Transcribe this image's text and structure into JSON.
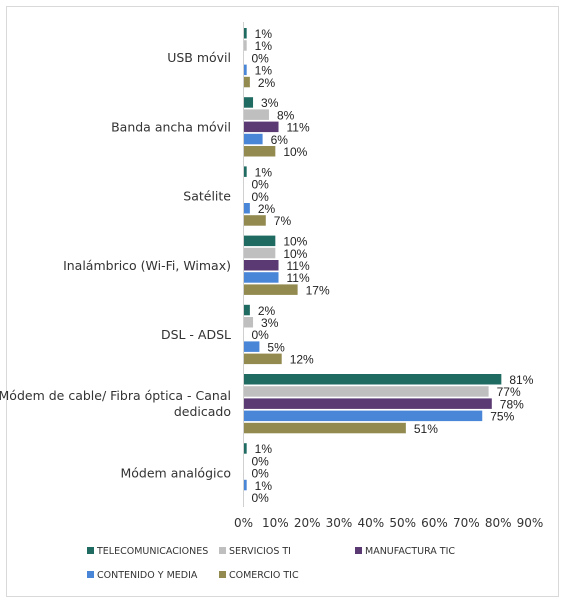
{
  "chart_data": {
    "type": "bar",
    "orientation": "horizontal",
    "categories": [
      "USB móvil",
      "Banda ancha móvil",
      "Satélite",
      "Inalámbrico (Wi-Fi, Wimax)",
      "DSL - ADSL",
      "Módem de cable/ Fibra óptica - Canal dedicado",
      "Módem analógico"
    ],
    "category_label_lines": [
      [
        "USB móvil"
      ],
      [
        "Banda ancha móvil"
      ],
      [
        "Satélite"
      ],
      [
        "Inalámbrico (Wi-Fi, Wimax)"
      ],
      [
        "DSL - ADSL"
      ],
      [
        "Módem de cable/ Fibra óptica - Canal",
        "dedicado"
      ],
      [
        "Módem analógico"
      ]
    ],
    "series": [
      {
        "name": "TELECOMUNICACIONES",
        "color": "#1f6b62",
        "values": [
          1,
          3,
          1,
          10,
          2,
          81,
          1
        ]
      },
      {
        "name": "SERVICIOS TI",
        "color": "#bfbfbf",
        "values": [
          1,
          8,
          0,
          10,
          3,
          77,
          0
        ]
      },
      {
        "name": "MANUFACTURA TIC",
        "color": "#5b3a73",
        "values": [
          0,
          11,
          0,
          11,
          0,
          78,
          0
        ]
      },
      {
        "name": "CONTENIDO Y MEDIA",
        "color": "#4a86d8",
        "values": [
          1,
          6,
          2,
          11,
          5,
          75,
          1
        ]
      },
      {
        "name": "COMERCIO TIC",
        "color": "#938a4f",
        "values": [
          2,
          10,
          7,
          17,
          12,
          51,
          0
        ]
      }
    ],
    "data_labels": [
      [
        "1%",
        "1%",
        "0%",
        "1%",
        "2%"
      ],
      [
        "3%",
        "8%",
        "11%",
        "6%",
        "10%"
      ],
      [
        "1%",
        "0%",
        "0%",
        "2%",
        "7%"
      ],
      [
        "10%",
        "10%",
        "11%",
        "11%",
        "17%"
      ],
      [
        "2%",
        "3%",
        "0%",
        "5%",
        "12%"
      ],
      [
        "81%",
        "77%",
        "78%",
        "75%",
        "51%"
      ],
      [
        "1%",
        "0%",
        "0%",
        "1%",
        "0%"
      ]
    ],
    "x_ticks": [
      "0%",
      "10%",
      "20%",
      "30%",
      "40%",
      "50%",
      "60%",
      "70%",
      "80%",
      "90%"
    ],
    "xlim": [
      0,
      90
    ],
    "grid": false,
    "legend": "bottom",
    "title": "",
    "xlabel": "",
    "ylabel": ""
  }
}
